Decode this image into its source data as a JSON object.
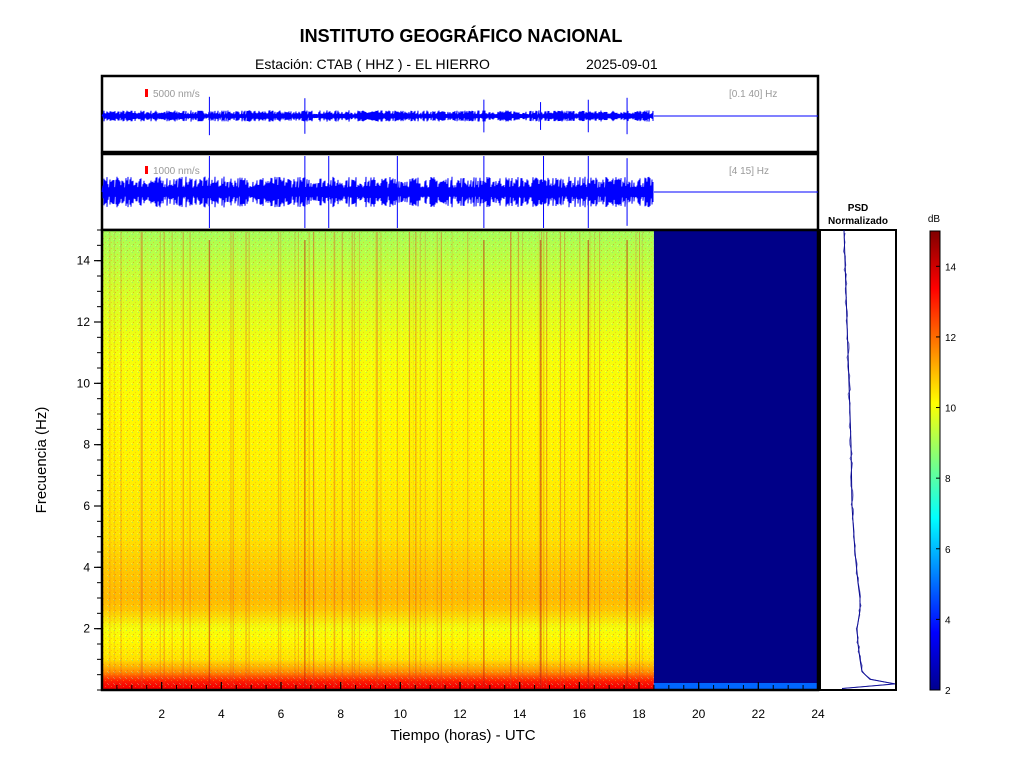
{
  "header": {
    "title": "INSTITUTO GEOGRÁFICO NACIONAL",
    "station": "Estación:  CTAB ( HHZ ) - EL HIERRO",
    "date": "2025-09-01"
  },
  "chart_data": [
    {
      "type": "line",
      "panel": "seismogram-low",
      "scale_label": "5000 nm/s",
      "band_label": "[0.1 40] Hz",
      "x_range": [
        0,
        24
      ],
      "data_end_hour": 18.5,
      "bursts_hours": [
        3.6,
        6.8,
        12.8,
        14.7,
        16.3,
        17.6
      ]
    },
    {
      "type": "line",
      "panel": "seismogram-high",
      "scale_label": "1000 nm/s",
      "band_label": "[4 15] Hz",
      "x_range": [
        0,
        24
      ],
      "data_end_hour": 18.5,
      "bursts_hours": [
        3.6,
        6.8,
        7.6,
        9.9,
        12.8,
        14.8,
        16.3,
        17.6
      ]
    },
    {
      "type": "heatmap",
      "panel": "spectrogram",
      "xlabel": "Tiempo (horas) - UTC",
      "ylabel": "Frecuencia  (Hz)",
      "xlim": [
        0,
        24
      ],
      "ylim": [
        0,
        15
      ],
      "x_ticks": [
        "2",
        "4",
        "6",
        "8",
        "10",
        "12",
        "14",
        "16",
        "18",
        "20",
        "22",
        "24"
      ],
      "y_ticks": [
        "2",
        "4",
        "6",
        "8",
        "10",
        "12",
        "14"
      ],
      "data_end_hour": 18.5,
      "colorbar": {
        "label": "dB",
        "range": [
          2,
          15
        ],
        "ticks": [
          "2",
          "4",
          "6",
          "8",
          "10",
          "12",
          "14"
        ]
      },
      "band_levels_db": [
        {
          "freq": 0.1,
          "db": 13.5
        },
        {
          "freq": 0.3,
          "db": 13.0
        },
        {
          "freq": 0.6,
          "db": 11.5
        },
        {
          "freq": 1.0,
          "db": 10.5
        },
        {
          "freq": 1.6,
          "db": 10.2
        },
        {
          "freq": 2.0,
          "db": 10.0
        },
        {
          "freq": 2.6,
          "db": 10.8
        },
        {
          "freq": 3.0,
          "db": 11.0
        },
        {
          "freq": 4.0,
          "db": 10.8
        },
        {
          "freq": 5.0,
          "db": 10.5
        },
        {
          "freq": 7.0,
          "db": 10.3
        },
        {
          "freq": 9.0,
          "db": 10.2
        },
        {
          "freq": 11.0,
          "db": 10.0
        },
        {
          "freq": 13.0,
          "db": 9.6
        },
        {
          "freq": 15.0,
          "db": 9.0
        }
      ]
    },
    {
      "type": "line",
      "panel": "psd",
      "title": "PSD\nNormalizado",
      "x_label": "",
      "points": [
        {
          "freq": 0.05,
          "value": 0.02
        },
        {
          "freq": 0.2,
          "value": 0.55
        },
        {
          "freq": 0.35,
          "value": 0.3
        },
        {
          "freq": 0.6,
          "value": 0.22
        },
        {
          "freq": 1.0,
          "value": 0.2
        },
        {
          "freq": 1.5,
          "value": 0.18
        },
        {
          "freq": 2.0,
          "value": 0.17
        },
        {
          "freq": 2.6,
          "value": 0.2
        },
        {
          "freq": 3.0,
          "value": 0.2
        },
        {
          "freq": 3.5,
          "value": 0.18
        },
        {
          "freq": 4.5,
          "value": 0.15
        },
        {
          "freq": 6.0,
          "value": 0.12
        },
        {
          "freq": 8.0,
          "value": 0.11
        },
        {
          "freq": 10.0,
          "value": 0.09
        },
        {
          "freq": 12.0,
          "value": 0.07
        },
        {
          "freq": 14.0,
          "value": 0.05
        },
        {
          "freq": 15.0,
          "value": 0.04
        }
      ]
    }
  ]
}
